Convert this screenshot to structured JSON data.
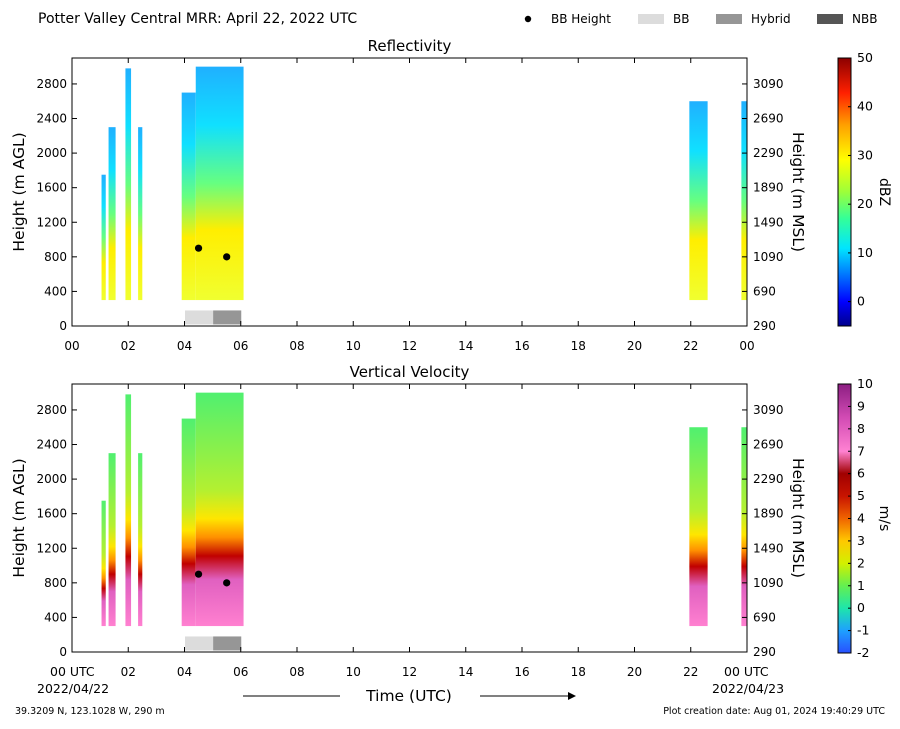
{
  "title": "Potter Valley Central MRR:  April 22, 2022 UTC",
  "legend": [
    {
      "label": "BB Height",
      "kind": "dot",
      "color": "#000000"
    },
    {
      "label": "BB",
      "kind": "bar",
      "color": "#dcdcdc"
    },
    {
      "label": "Hybrid",
      "kind": "bar",
      "color": "#969696"
    },
    {
      "label": "NBB",
      "kind": "bar",
      "color": "#555555"
    }
  ],
  "footer": {
    "location": "39.3209 N, 123.1028 W, 290 m",
    "created": "Plot creation date: Aug 01, 2024 19:40:29 UTC",
    "xlabel": "Time (UTC)",
    "start_time_label": "00 UTC",
    "start_date": "2022/04/22",
    "end_time_label": "00 UTC",
    "end_date": "2022/04/23"
  },
  "chart_data": [
    {
      "type": "heatmap",
      "title": "Reflectivity",
      "ylabel": "Height (m AGL)",
      "y2label": "Height (m MSL)",
      "cbar_label": "dBZ",
      "xlim": [
        0,
        24
      ],
      "ylim": [
        0,
        3100
      ],
      "x_ticks": [
        "00",
        "02",
        "04",
        "06",
        "08",
        "10",
        "12",
        "14",
        "16",
        "18",
        "20",
        "22",
        "00"
      ],
      "y_ticks": [
        0,
        400,
        800,
        1200,
        1600,
        2000,
        2400,
        2800
      ],
      "y2_ticks": [
        290,
        690,
        1090,
        1490,
        1890,
        2290,
        2690,
        3090
      ],
      "cbar_range": [
        -5,
        50
      ],
      "cbar_ticks": [
        0,
        10,
        20,
        30,
        40,
        50
      ],
      "bb_height_points": [
        {
          "x": 4.5,
          "y": 900
        },
        {
          "x": 5.5,
          "y": 800
        }
      ],
      "bb_type_periods": [
        {
          "type": "BB",
          "x_start": 4.0,
          "x_end": 5.0
        },
        {
          "type": "Hybrid",
          "x_start": 5.0,
          "x_end": 6.0
        }
      ],
      "data_periods": [
        {
          "x_start": 1.05,
          "x_end": 1.2,
          "y_max": 1750
        },
        {
          "x_start": 1.3,
          "x_end": 1.55,
          "y_max": 2300
        },
        {
          "x_start": 1.9,
          "x_end": 2.1,
          "y_max": 2980
        },
        {
          "x_start": 2.35,
          "x_end": 2.5,
          "y_max": 2300
        },
        {
          "x_start": 3.9,
          "x_end": 4.4,
          "y_max": 2700
        },
        {
          "x_start": 4.4,
          "x_end": 6.1,
          "y_max": 3000
        },
        {
          "x_start": 21.95,
          "x_end": 22.6,
          "y_max": 2600
        },
        {
          "x_start": 23.8,
          "x_end": 24.0,
          "y_max": 2600
        }
      ]
    },
    {
      "type": "heatmap",
      "title": "Vertical Velocity",
      "ylabel": "Height (m AGL)",
      "y2label": "Height (m MSL)",
      "cbar_label": "m/s",
      "xlim": [
        0,
        24
      ],
      "ylim": [
        0,
        3100
      ],
      "x_ticks": [
        "00",
        "02",
        "04",
        "06",
        "08",
        "10",
        "12",
        "14",
        "16",
        "18",
        "20",
        "22",
        "00"
      ],
      "y_ticks": [
        0,
        400,
        800,
        1200,
        1600,
        2000,
        2400,
        2800
      ],
      "y2_ticks": [
        290,
        690,
        1090,
        1490,
        1890,
        2290,
        2690,
        3090
      ],
      "cbar_range": [
        -2,
        10
      ],
      "cbar_ticks": [
        -2,
        -1,
        0,
        1,
        2,
        3,
        4,
        5,
        6,
        7,
        8,
        9,
        10
      ],
      "bb_height_points": [
        {
          "x": 4.5,
          "y": 900
        },
        {
          "x": 5.5,
          "y": 800
        }
      ],
      "bb_type_periods": [
        {
          "type": "BB",
          "x_start": 4.0,
          "x_end": 5.0
        },
        {
          "type": "Hybrid",
          "x_start": 5.0,
          "x_end": 6.0
        }
      ],
      "data_periods": [
        {
          "x_start": 1.05,
          "x_end": 1.2,
          "y_max": 1750
        },
        {
          "x_start": 1.3,
          "x_end": 1.55,
          "y_max": 2300
        },
        {
          "x_start": 1.9,
          "x_end": 2.1,
          "y_max": 2980
        },
        {
          "x_start": 2.35,
          "x_end": 2.5,
          "y_max": 2300
        },
        {
          "x_start": 3.9,
          "x_end": 4.4,
          "y_max": 2700
        },
        {
          "x_start": 4.4,
          "x_end": 6.1,
          "y_max": 3000
        },
        {
          "x_start": 21.95,
          "x_end": 22.6,
          "y_max": 2600
        },
        {
          "x_start": 23.8,
          "x_end": 24.0,
          "y_max": 2600
        }
      ]
    }
  ]
}
